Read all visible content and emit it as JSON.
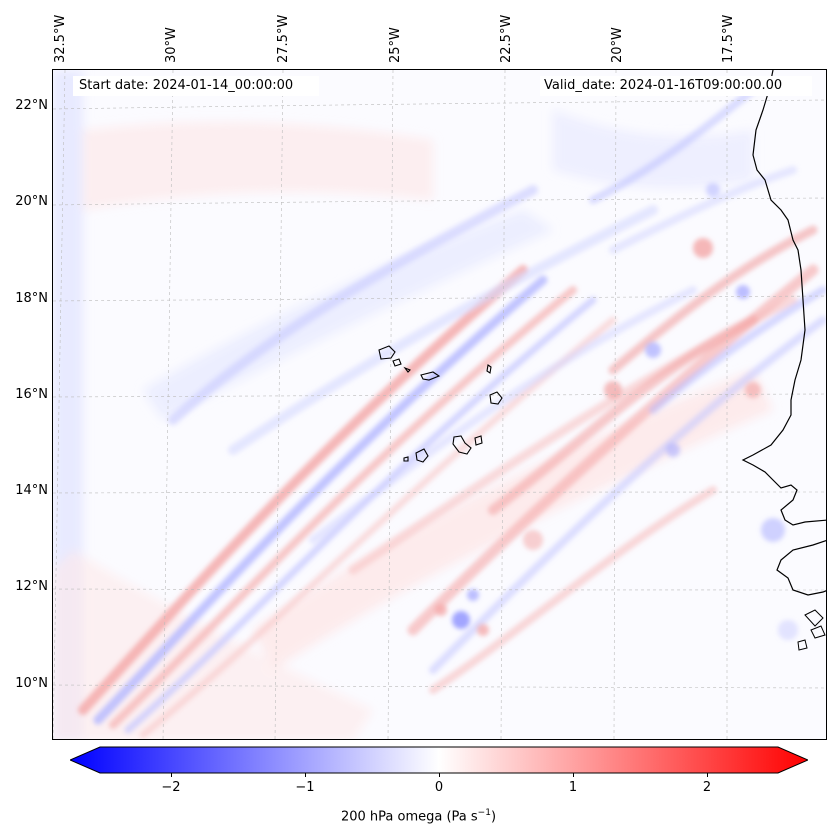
{
  "map": {
    "start_date": "Start date: 2024-01-14_00:00:00",
    "valid_date": "Valid_date: 2024-01-16T09:00:00.00",
    "lat_labels": [
      "22°N",
      "20°N",
      "18°N",
      "16°N",
      "14°N",
      "12°N",
      "10°N"
    ],
    "lon_labels": [
      "32.5°W",
      "30°W",
      "27.5°W",
      "25°W",
      "22.5°W",
      "20°W",
      "17.5°W"
    ],
    "colorbar": {
      "label_prefix": "200 hPa omega (Pa s",
      "label_sup": "−1",
      "label_suffix": ")",
      "ticks": [
        "−2",
        "−1",
        "0",
        "1",
        "2"
      ],
      "min": -2.7,
      "max": 2.7,
      "negative_color": "#0000ff",
      "positive_color": "#ff0000"
    }
  }
}
